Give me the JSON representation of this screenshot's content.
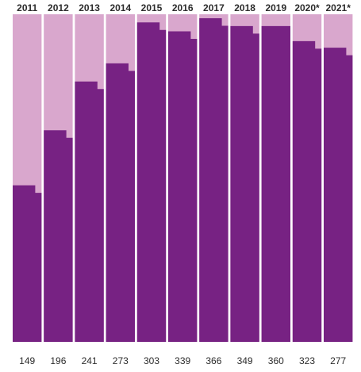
{
  "chart_data": {
    "type": "bar",
    "categories": [
      "2011",
      "2012",
      "2013",
      "2014",
      "2015",
      "2016",
      "2017",
      "2018",
      "2019",
      "2020*",
      "2021*"
    ],
    "values": [
      149,
      196,
      241,
      273,
      303,
      339,
      366,
      349,
      360,
      323,
      277
    ],
    "fill_fraction": [
      0.478,
      0.646,
      0.795,
      0.85,
      0.975,
      1.12,
      1.22,
      1.16,
      1.16,
      1.045,
      0.898
    ],
    "notch_drop_fraction": [
      0.023,
      0.023,
      0.023,
      0.023,
      0.023,
      0.023,
      0.023,
      0.023,
      0.0,
      0.023,
      0.023
    ],
    "title": "",
    "xlabel": "",
    "ylabel": "",
    "grid": false,
    "legend": "none",
    "colors": {
      "filled": "#772283",
      "remainder": "#d9a7cd",
      "background": "#ffffff",
      "text": "#2b2b2b"
    }
  }
}
